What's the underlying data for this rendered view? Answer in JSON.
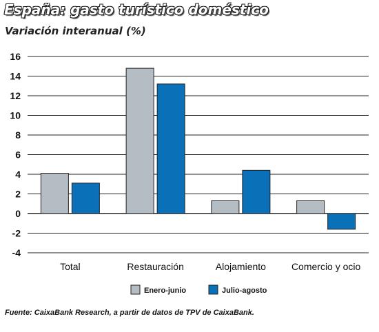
{
  "title": "España: gasto turístico doméstico",
  "subtitle": "Variación interanual (%)",
  "source": "Fuente: CaixaBank Research, a partir de datos de TPV de CaixaBank.",
  "colors": {
    "enero_junio": "#b4bdc3",
    "julio_agosto": "#0a70b8",
    "gridline": "#222222",
    "text": "#111111"
  },
  "chart_data": {
    "type": "bar",
    "title": "España: gasto turístico doméstico",
    "ylabel": "Variación interanual (%)",
    "categories": [
      "Total",
      "Restauración",
      "Alojamiento",
      "Comercio y ocio"
    ],
    "series": [
      {
        "name": "Enero-junio",
        "values": [
          4.1,
          14.8,
          1.3,
          1.3
        ]
      },
      {
        "name": "Julio-agosto",
        "values": [
          3.1,
          13.2,
          4.4,
          -1.6
        ]
      }
    ],
    "ylim": [
      -4,
      16
    ],
    "yticks": [
      "16",
      "14",
      "12",
      "10",
      "8",
      "6",
      "4",
      "2",
      "0",
      "-2",
      "-4"
    ],
    "grid": true,
    "legend_position": "bottom"
  }
}
